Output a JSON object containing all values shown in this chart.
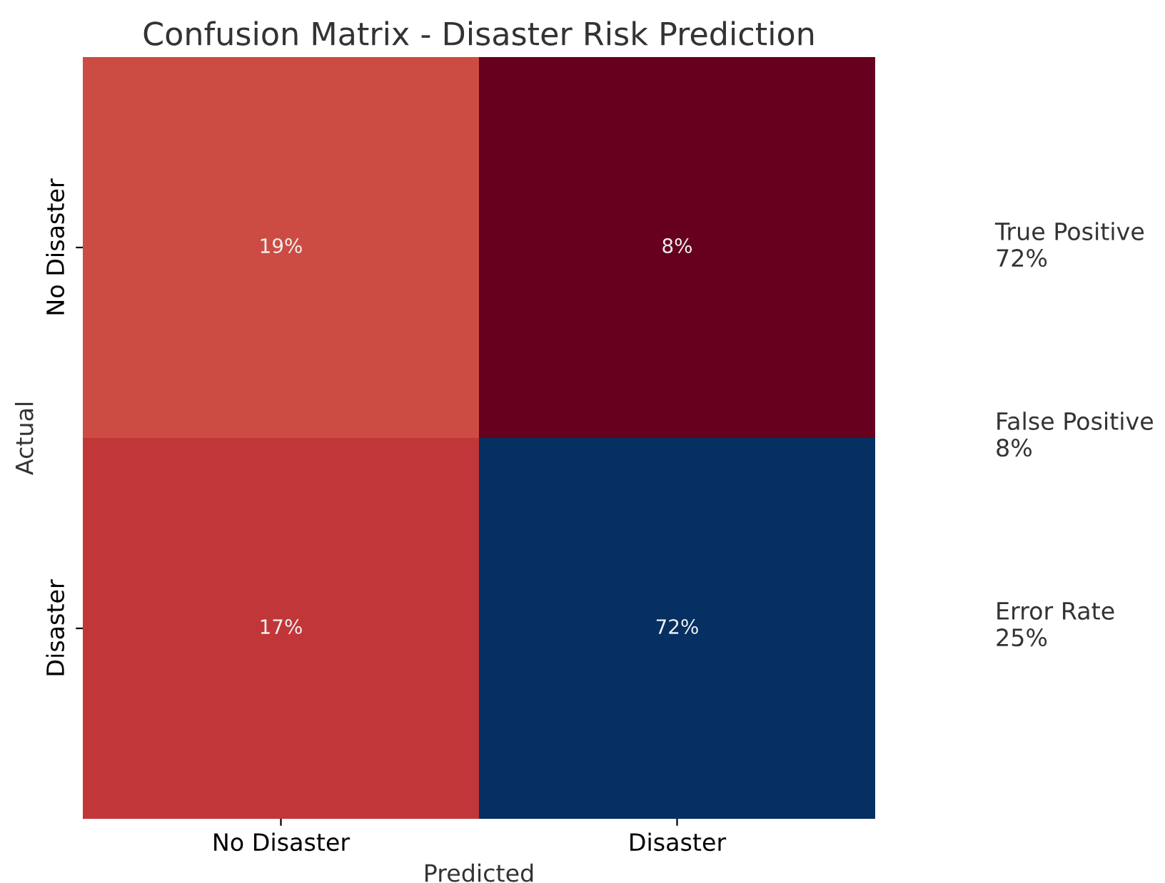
{
  "chart_data": {
    "type": "heatmap",
    "title": "Confusion Matrix - Disaster Risk Prediction",
    "xlabel": "Predicted",
    "ylabel": "Actual",
    "categories": [
      "No Disaster",
      "Disaster"
    ],
    "y_categories": [
      "No Disaster",
      "Disaster"
    ],
    "cells": [
      [
        19,
        8
      ],
      [
        17,
        72
      ]
    ],
    "cell_labels": [
      [
        "19%",
        "8%"
      ],
      [
        "17%",
        "72%"
      ]
    ],
    "annotations": [
      "True Positive\n72%",
      "False Positive\n8%",
      "Error Rate\n25%"
    ]
  }
}
